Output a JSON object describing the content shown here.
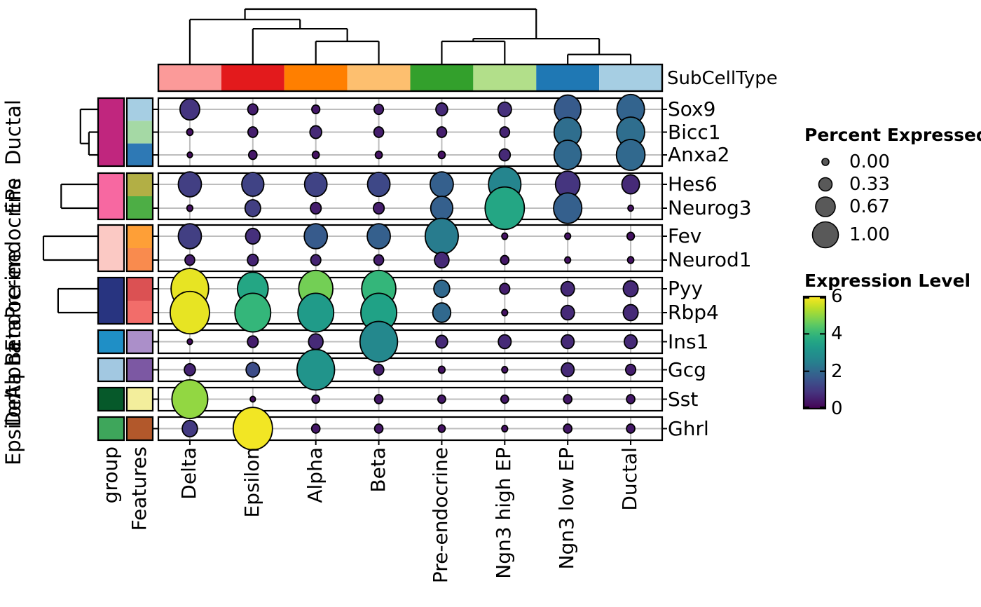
{
  "figure_title": "",
  "annotation": {
    "column_bar_label": "SubCellType",
    "group_axis_label": "group",
    "features_axis_label": "Features"
  },
  "legend_size": {
    "title": "Percent Expressed",
    "labels": [
      "0.00",
      "0.33",
      "0.67",
      "1.00"
    ],
    "fracs": [
      0.0,
      0.33,
      0.67,
      1.0
    ],
    "dot_color": "#595959"
  },
  "legend_color": {
    "title": "Expression Level",
    "tick_labels": [
      "6",
      "4",
      "2",
      "0"
    ],
    "tick_values": [
      6,
      4,
      2,
      0
    ],
    "min": 0,
    "max": 6
  },
  "chart_data": {
    "type": "heatmap",
    "subtype": "clustered-dotplot",
    "columns": [
      "Delta",
      "Epsilon",
      "Alpha",
      "Beta",
      "Pre-endocrine",
      "Ngn3 high EP",
      "Ngn3 low EP",
      "Ductal"
    ],
    "column_colors": [
      "#FB9A99",
      "#E31A1C",
      "#FF7F00",
      "#FDBF6F",
      "#33A02C",
      "#B2DF8A",
      "#1F78B4",
      "#A6CEE3"
    ],
    "column_dendrogram": {
      "h": 1.0,
      "children": [
        {
          "h": 0.81,
          "children": [
            {
              "leaf": 0
            },
            {
              "h": 0.64,
              "children": [
                {
                  "leaf": 1
                },
                {
                  "h": 0.41,
                  "children": [
                    {
                      "leaf": 2
                    },
                    {
                      "leaf": 3
                    }
                  ]
                }
              ]
            }
          ]
        },
        {
          "h": 0.46,
          "children": [
            {
              "h": 0.41,
              "children": [
                {
                  "leaf": 4
                },
                {
                  "leaf": 5
                }
              ]
            },
            {
              "h": 0.17,
              "children": [
                {
                  "leaf": 6
                },
                {
                  "leaf": 7
                }
              ]
            }
          ]
        }
      ]
    },
    "row_groups": [
      {
        "label": "Ductal",
        "group_color": "#C0267E",
        "dendrogram": {
          "h": 0.22,
          "children": [
            {
              "leaf": 0
            },
            {
              "h": 0.11,
              "children": [
                {
                  "leaf": 1
                },
                {
                  "leaf": 2
                }
              ]
            }
          ]
        },
        "genes": [
          {
            "name": "Sox9",
            "feature_color": "#A6CEE3",
            "pct": [
              0.43,
              0.15,
              0.09,
              0.13,
              0.2,
              0.25,
              0.63,
              0.66
            ],
            "expr": [
              0.9,
              0.5,
              0.4,
              0.5,
              0.7,
              0.8,
              1.7,
              1.9
            ]
          },
          {
            "name": "Bicc1",
            "feature_color": "#A5D9A5",
            "pct": [
              0.04,
              0.14,
              0.2,
              0.14,
              0.14,
              0.14,
              0.65,
              0.67
            ],
            "expr": [
              0.3,
              0.5,
              0.7,
              0.5,
              0.5,
              0.6,
              2.1,
              2.1
            ]
          },
          {
            "name": "Anxa2",
            "feature_color": "#2E79B5",
            "pct": [
              0.01,
              0.1,
              0.06,
              0.06,
              0.06,
              0.18,
              0.65,
              0.69
            ],
            "expr": [
              0.2,
              0.4,
              0.3,
              0.3,
              0.3,
              0.7,
              2.0,
              2.0
            ]
          }
        ]
      },
      {
        "label": "EPs",
        "group_color": "#F768A1",
        "dendrogram": {
          "h": 0.47,
          "children": [
            {
              "leaf": 0
            },
            {
              "leaf": 1
            }
          ]
        },
        "genes": [
          {
            "name": "Hes6",
            "feature_color": "#B2AF45",
            "pct": [
              0.53,
              0.5,
              0.51,
              0.51,
              0.53,
              0.8,
              0.57,
              0.37
            ],
            "expr": [
              1.1,
              1.2,
              1.2,
              1.3,
              1.8,
              2.6,
              0.9,
              0.7
            ]
          },
          {
            "name": "Neurog3",
            "feature_color": "#4DAE45",
            "pct": [
              0.03,
              0.31,
              0.17,
              0.17,
              0.5,
              1.0,
              0.68,
              0.02
            ],
            "expr": [
              0.3,
              1.1,
              0.5,
              0.5,
              1.8,
              3.6,
              1.8,
              0.3
            ]
          }
        ]
      },
      {
        "label": "Pre-endocrine",
        "group_color": "#FBC9C4",
        "dendrogram": {
          "h": 0.7,
          "children": [
            {
              "leaf": 0
            },
            {
              "leaf": 1
            }
          ]
        },
        "genes": [
          {
            "name": "Fev",
            "feature_color": "#FE9F37",
            "pct": [
              0.53,
              0.28,
              0.53,
              0.53,
              0.82,
              0.03,
              0.03,
              0.07
            ],
            "expr": [
              1.1,
              0.8,
              1.7,
              1.8,
              2.4,
              0.3,
              0.3,
              0.3
            ]
          },
          {
            "name": "Neurod1",
            "feature_color": "#F98B4E",
            "pct": [
              0.14,
              0.17,
              0.15,
              0.14,
              0.28,
              0.1,
              0.03,
              0.04
            ],
            "expr": [
              0.5,
              0.6,
              0.6,
              0.5,
              0.7,
              0.4,
              0.3,
              0.3
            ]
          }
        ]
      },
      {
        "label": "Endocrine",
        "group_color": "#283480",
        "dendrogram": {
          "h": 0.51,
          "children": [
            {
              "leaf": 0
            },
            {
              "leaf": 1
            }
          ]
        },
        "genes": [
          {
            "name": "Pyy",
            "feature_color": "#DB5153",
            "pct": [
              0.95,
              0.75,
              0.85,
              0.85,
              0.32,
              0.15,
              0.25,
              0.29
            ],
            "expr": [
              5.8,
              3.6,
              4.7,
              4.0,
              2.0,
              0.5,
              0.7,
              0.7
            ]
          },
          {
            "name": "Rbp4",
            "feature_color": "#F26D6A",
            "pct": [
              1.0,
              0.9,
              0.9,
              0.9,
              0.38,
              0.03,
              0.25,
              0.29
            ],
            "expr": [
              5.8,
              4.0,
              3.3,
              3.5,
              2.0,
              0.3,
              0.7,
              0.7
            ]
          }
        ]
      },
      {
        "label": "Beta",
        "group_color": "#1F8FC6",
        "dendrogram": null,
        "genes": [
          {
            "name": "Ins1",
            "feature_color": "#AB8FC9",
            "pct": [
              0.01,
              0.17,
              0.28,
              0.95,
              0.2,
              0.23,
              0.23,
              0.23
            ],
            "expr": [
              0.2,
              0.5,
              0.7,
              2.7,
              0.7,
              0.7,
              0.7,
              0.7
            ]
          }
        ]
      },
      {
        "label": "Alpha",
        "group_color": "#A2C8E1",
        "dendrogram": null,
        "genes": [
          {
            "name": "Gcg",
            "feature_color": "#7C58A3",
            "pct": [
              0.18,
              0.25,
              0.95,
              0.15,
              0.05,
              0.03,
              0.23,
              0.15
            ],
            "expr": [
              0.6,
              1.4,
              3.1,
              0.5,
              0.3,
              0.3,
              0.7,
              0.5
            ]
          }
        ]
      },
      {
        "label": "Delta",
        "group_color": "#06592A",
        "dendrogram": null,
        "genes": [
          {
            "name": "Sst",
            "feature_color": "#F3EE9C",
            "pct": [
              0.9,
              0.01,
              0.08,
              0.1,
              0.08,
              0.08,
              0.1,
              0.1
            ],
            "expr": [
              5.0,
              0.2,
              0.4,
              0.4,
              0.4,
              0.4,
              0.4,
              0.4
            ]
          }
        ]
      },
      {
        "label": "Epsilon",
        "group_color": "#3EA65B",
        "dendrogram": null,
        "genes": [
          {
            "name": "Ghrl",
            "feature_color": "#B2582B",
            "pct": [
              0.3,
              1.0,
              0.1,
              0.1,
              0.06,
              0.03,
              0.1,
              0.1
            ],
            "expr": [
              1.0,
              5.9,
              0.4,
              0.4,
              0.3,
              0.3,
              0.4,
              0.4
            ]
          }
        ]
      }
    ],
    "colormap": "viridis",
    "grid": true
  }
}
